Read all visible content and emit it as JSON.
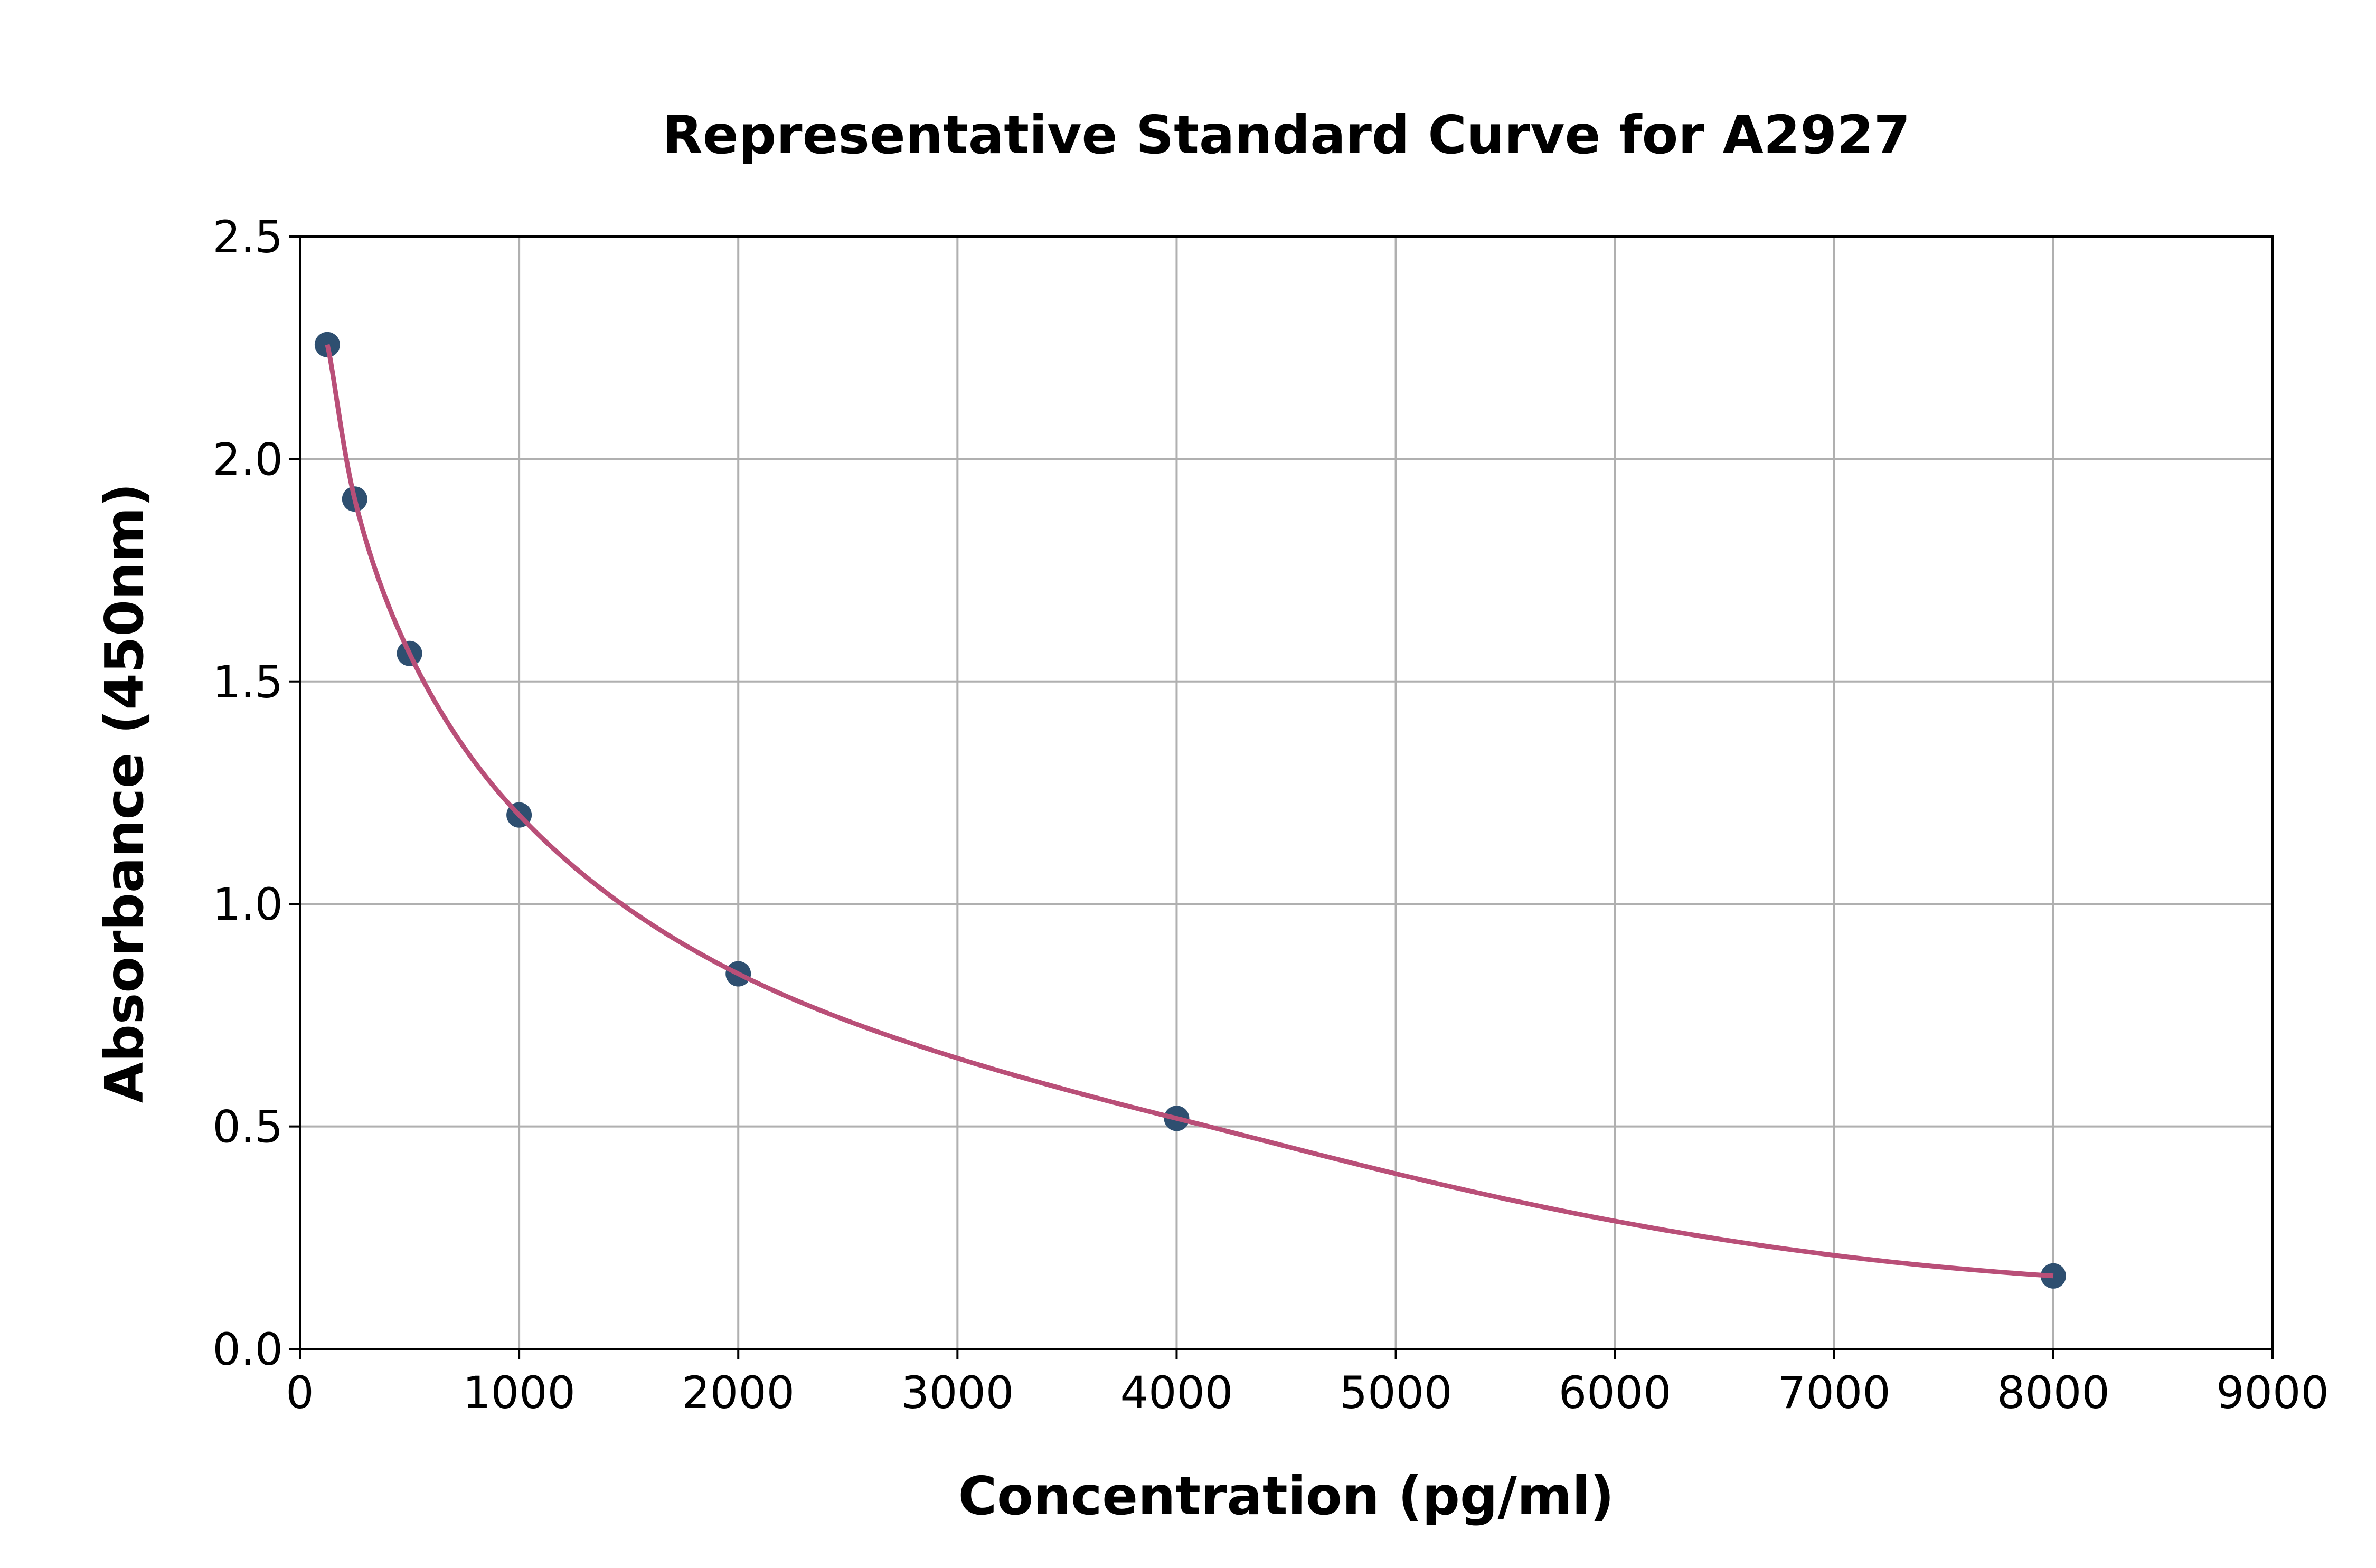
{
  "chart_data": {
    "type": "scatter",
    "title": "Representative Standard Curve for A2927",
    "xlabel": "Concentration (pg/ml)",
    "ylabel": "Absorbance (450nm)",
    "xlim": [
      0,
      9000
    ],
    "ylim": [
      0,
      2.5
    ],
    "xticks": [
      "0",
      "1000",
      "2000",
      "3000",
      "4000",
      "5000",
      "6000",
      "7000",
      "8000",
      "9000"
    ],
    "yticks": [
      "0.0",
      "0.5",
      "1.0",
      "1.5",
      "2.0",
      "2.5"
    ],
    "grid": true,
    "points": {
      "x": [
        125,
        250,
        500,
        1000,
        2000,
        4000,
        8000
      ],
      "y": [
        2.257,
        1.91,
        1.563,
        1.2,
        0.843,
        0.518,
        0.164
      ]
    },
    "fit_curve": true,
    "colors": {
      "points": "#2e4f70",
      "curve": "#b94f78",
      "grid": "#b0b0b0"
    }
  }
}
